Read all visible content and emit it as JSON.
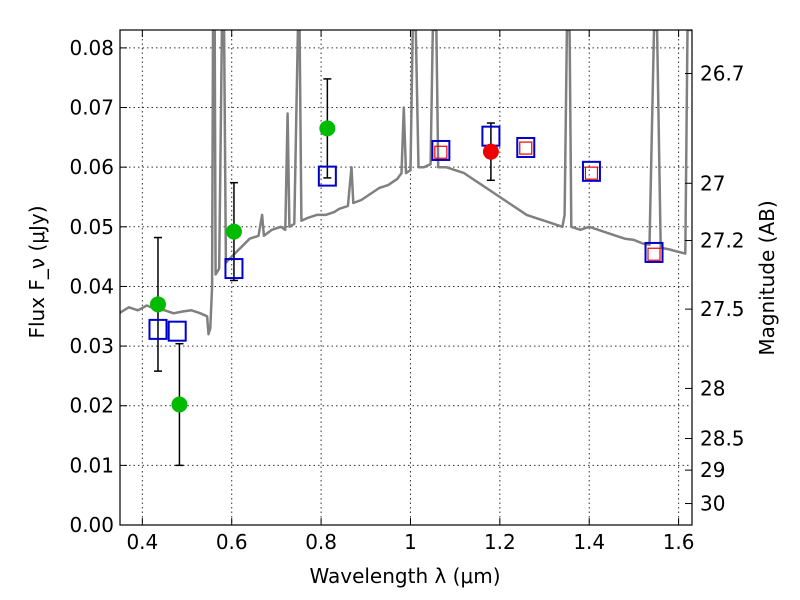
{
  "chart_data": {
    "type": "scatter",
    "xlabel": "Wavelength λ (μm)",
    "ylabel": "Flux F_ν (μJy)",
    "y2label": "Magnitude (AB)",
    "xlim": [
      0.35,
      1.63
    ],
    "ylim": [
      0.0,
      0.083
    ],
    "grid": true,
    "x_ticks": [
      {
        "value": 0.4,
        "label": "0.4"
      },
      {
        "value": 0.6,
        "label": "0.6"
      },
      {
        "value": 0.8,
        "label": "0.8"
      },
      {
        "value": 1.0,
        "label": "1"
      },
      {
        "value": 1.2,
        "label": "1.2"
      },
      {
        "value": 1.4,
        "label": "1.4"
      },
      {
        "value": 1.6,
        "label": "1.6"
      }
    ],
    "y_ticks": [
      {
        "value": 0.0,
        "label": "0.00"
      },
      {
        "value": 0.01,
        "label": "0.01"
      },
      {
        "value": 0.02,
        "label": "0.02"
      },
      {
        "value": 0.03,
        "label": "0.03"
      },
      {
        "value": 0.04,
        "label": "0.04"
      },
      {
        "value": 0.05,
        "label": "0.05"
      },
      {
        "value": 0.06,
        "label": "0.06"
      },
      {
        "value": 0.07,
        "label": "0.07"
      },
      {
        "value": 0.08,
        "label": "0.08"
      }
    ],
    "mag_ticks": [
      {
        "flux": 0.0757,
        "label": "26.7"
      },
      {
        "flux": 0.0573,
        "label": "27"
      },
      {
        "flux": 0.0477,
        "label": "27.2"
      },
      {
        "flux": 0.0362,
        "label": "27.5"
      },
      {
        "flux": 0.0229,
        "label": "28"
      },
      {
        "flux": 0.0145,
        "label": "28.5"
      },
      {
        "flux": 0.0092,
        "label": "29"
      },
      {
        "flux": 0.0036,
        "label": "30"
      }
    ],
    "series": [
      {
        "kind": "model-spectrum",
        "color": "#808080",
        "points": [
          [
            0.35,
            0.0356
          ],
          [
            0.37,
            0.0365
          ],
          [
            0.39,
            0.036
          ],
          [
            0.41,
            0.0368
          ],
          [
            0.43,
            0.0362
          ],
          [
            0.45,
            0.036
          ],
          [
            0.47,
            0.0355
          ],
          [
            0.49,
            0.0358
          ],
          [
            0.51,
            0.036
          ],
          [
            0.53,
            0.0355
          ],
          [
            0.545,
            0.035
          ],
          [
            0.548,
            0.032
          ],
          [
            0.552,
            0.033
          ],
          [
            0.556,
            0.04
          ],
          [
            0.558,
            0.083
          ],
          [
            0.562,
            0.083
          ],
          [
            0.564,
            0.042
          ],
          [
            0.572,
            0.043
          ],
          [
            0.578,
            0.083
          ],
          [
            0.583,
            0.083
          ],
          [
            0.587,
            0.044
          ],
          [
            0.6,
            0.045
          ],
          [
            0.62,
            0.0465
          ],
          [
            0.64,
            0.048
          ],
          [
            0.66,
            0.0485
          ],
          [
            0.668,
            0.052
          ],
          [
            0.672,
            0.0485
          ],
          [
            0.69,
            0.0495
          ],
          [
            0.71,
            0.05
          ],
          [
            0.72,
            0.0495
          ],
          [
            0.725,
            0.069
          ],
          [
            0.729,
            0.05
          ],
          [
            0.74,
            0.0505
          ],
          [
            0.748,
            0.083
          ],
          [
            0.752,
            0.083
          ],
          [
            0.756,
            0.051
          ],
          [
            0.77,
            0.0515
          ],
          [
            0.79,
            0.052
          ],
          [
            0.81,
            0.052
          ],
          [
            0.83,
            0.0525
          ],
          [
            0.84,
            0.053
          ],
          [
            0.86,
            0.0535
          ],
          [
            0.868,
            0.06
          ],
          [
            0.872,
            0.054
          ],
          [
            0.89,
            0.0545
          ],
          [
            0.91,
            0.0555
          ],
          [
            0.93,
            0.0565
          ],
          [
            0.95,
            0.057
          ],
          [
            0.97,
            0.058
          ],
          [
            0.98,
            0.059
          ],
          [
            0.985,
            0.07
          ],
          [
            0.99,
            0.059
          ],
          [
            1.0,
            0.0595
          ],
          [
            1.005,
            0.083
          ],
          [
            1.012,
            0.083
          ],
          [
            1.018,
            0.06
          ],
          [
            1.03,
            0.06
          ],
          [
            1.045,
            0.0605
          ],
          [
            1.05,
            0.083
          ],
          [
            1.058,
            0.083
          ],
          [
            1.062,
            0.06
          ],
          [
            1.08,
            0.06
          ],
          [
            1.1,
            0.0595
          ],
          [
            1.12,
            0.059
          ],
          [
            1.14,
            0.058
          ],
          [
            1.16,
            0.057
          ],
          [
            1.18,
            0.056
          ],
          [
            1.2,
            0.055
          ],
          [
            1.22,
            0.054
          ],
          [
            1.24,
            0.053
          ],
          [
            1.26,
            0.052
          ],
          [
            1.28,
            0.0515
          ],
          [
            1.3,
            0.051
          ],
          [
            1.32,
            0.0505
          ],
          [
            1.34,
            0.05
          ],
          [
            1.345,
            0.052
          ],
          [
            1.35,
            0.083
          ],
          [
            1.356,
            0.083
          ],
          [
            1.36,
            0.05
          ],
          [
            1.38,
            0.0495
          ],
          [
            1.4,
            0.05
          ],
          [
            1.42,
            0.0495
          ],
          [
            1.44,
            0.049
          ],
          [
            1.46,
            0.0485
          ],
          [
            1.48,
            0.048
          ],
          [
            1.5,
            0.0478
          ],
          [
            1.52,
            0.0472
          ],
          [
            1.535,
            0.047
          ],
          [
            1.545,
            0.083
          ],
          [
            1.552,
            0.083
          ],
          [
            1.56,
            0.0465
          ],
          [
            1.58,
            0.0462
          ],
          [
            1.6,
            0.0458
          ],
          [
            1.615,
            0.0455
          ],
          [
            1.62,
            0.083
          ],
          [
            1.63,
            0.083
          ]
        ]
      },
      {
        "kind": "observed-green",
        "color": "#00bb00",
        "points": [
          {
            "x": 0.435,
            "y": 0.037,
            "err": 0.0112
          },
          {
            "x": 0.483,
            "y": 0.0202,
            "err": 0.0102
          },
          {
            "x": 0.605,
            "y": 0.0492,
            "err": 0.0082
          },
          {
            "x": 0.814,
            "y": 0.0665,
            "err": 0.0083
          }
        ]
      },
      {
        "kind": "observed-red",
        "color": "#ee0000",
        "points": [
          {
            "x": 1.18,
            "y": 0.0626,
            "err": 0.0048
          }
        ]
      },
      {
        "kind": "model-blue-squares",
        "color": "#0000cc",
        "points": [
          [
            0.435,
            0.0328
          ],
          [
            0.478,
            0.0325
          ],
          [
            0.605,
            0.043
          ],
          [
            0.814,
            0.0585
          ],
          [
            1.068,
            0.0628
          ],
          [
            1.18,
            0.0652
          ],
          [
            1.258,
            0.0633
          ],
          [
            1.405,
            0.0593
          ],
          [
            1.545,
            0.0457
          ]
        ]
      },
      {
        "kind": "model-red-small-squares",
        "color": "#ee0000",
        "points": [
          [
            1.068,
            0.0625
          ],
          [
            1.258,
            0.0632
          ],
          [
            1.405,
            0.059
          ],
          [
            1.545,
            0.0454
          ]
        ]
      }
    ]
  }
}
